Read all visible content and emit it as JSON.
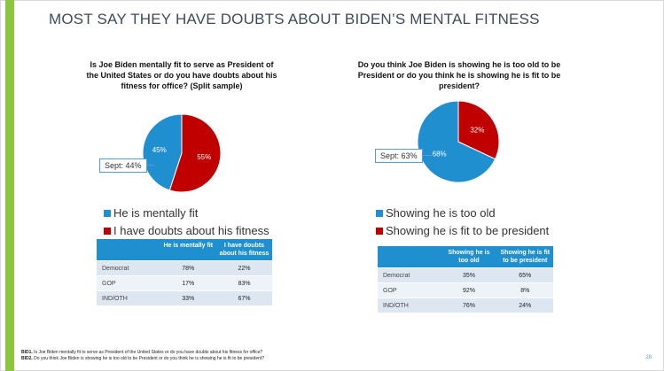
{
  "slide": {
    "title": "MOST SAY THEY HAVE DOUBTS ABOUT BIDEN’S MENTAL FITNESS",
    "page_number": "28",
    "colors": {
      "accent_bar": "#8cc63f",
      "blue": "#1f8fcf",
      "red": "#c00000"
    }
  },
  "left": {
    "question": "Is Joe Biden mentally fit to serve as President of the United States or do you have doubts about his fitness for office? (Split sample)",
    "callout": "Sept: 44%",
    "legend": [
      "He is mentally fit",
      "I have doubts about his fitness"
    ],
    "table": {
      "headers": [
        "",
        "He is mentally fit",
        "I have doubts about his fitness"
      ],
      "rows": [
        {
          "label": "Democrat",
          "values": [
            "78%",
            "22%"
          ]
        },
        {
          "label": "GOP",
          "values": [
            "17%",
            "83%"
          ]
        },
        {
          "label": "IND/OTH",
          "values": [
            "33%",
            "67%"
          ]
        }
      ]
    }
  },
  "right": {
    "question": "Do you think Joe Biden is showing he is too old to be President or do you think he is showing he is fit to be president?",
    "callout": "Sept: 63%",
    "legend": [
      "Showing he is too old",
      "Showing he is fit to be president"
    ],
    "table": {
      "headers": [
        "",
        "Showing he is too old",
        "Showing he is fit to be president"
      ],
      "rows": [
        {
          "label": "Democrat",
          "values": [
            "35%",
            "65%"
          ]
        },
        {
          "label": "GOP",
          "values": [
            "92%",
            "8%"
          ]
        },
        {
          "label": "IND/OTH",
          "values": [
            "76%",
            "24%"
          ]
        }
      ]
    }
  },
  "footnotes": {
    "bid1_code": "BID1.",
    "bid1_text": " Is Joe Biden mentally fit to serve as President of the United States or do you have doubts about his fitness for office?",
    "bid2_code": "BID2.",
    "bid2_text": " Do you think Joe Biden is showing he is too old to be President or do you think he is showing he is fit to be president?"
  },
  "chart_data": [
    {
      "type": "pie",
      "categories": [
        "He is mentally fit",
        "I have doubts about his fitness"
      ],
      "values": [
        45,
        55
      ],
      "labels": [
        "45%",
        "55%"
      ],
      "colors": [
        "#1f8fcf",
        "#c00000"
      ]
    },
    {
      "type": "pie",
      "categories": [
        "Showing he is too old",
        "Showing he is fit to be president"
      ],
      "values": [
        68,
        32
      ],
      "labels": [
        "68%",
        "32%"
      ],
      "colors": [
        "#1f8fcf",
        "#c00000"
      ]
    }
  ]
}
